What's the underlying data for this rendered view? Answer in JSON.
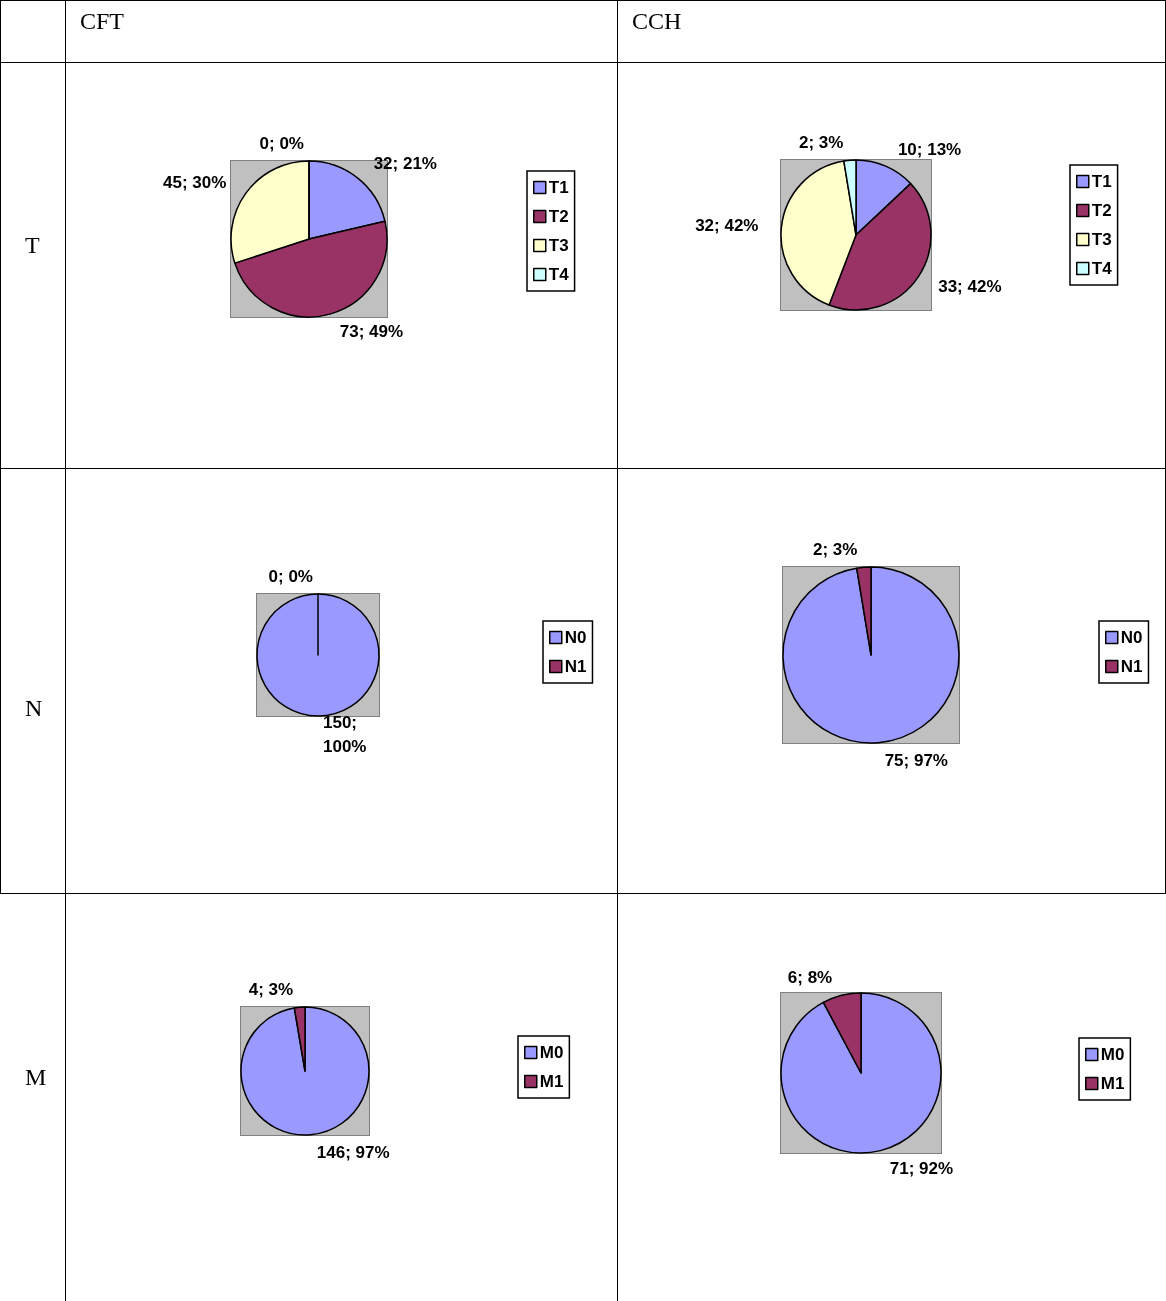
{
  "chart_data": [
    {
      "type": "pie",
      "annotations": [
        "CFT",
        "T"
      ],
      "categories": [
        "T1",
        "T2",
        "T3",
        "T4"
      ],
      "values": [
        32,
        73,
        45,
        0
      ],
      "colors": [
        "#9999ff",
        "#993366",
        "#ffffcc",
        "#ccffff"
      ],
      "value_labels": [
        "32; 21%",
        "73; 49%",
        "45; 30%",
        "0; 0%"
      ],
      "legend": "right"
    },
    {
      "type": "pie",
      "annotations": [
        "CCH"
      ],
      "categories": [
        "T1",
        "T2",
        "T3",
        "T4"
      ],
      "values": [
        10,
        33,
        32,
        2
      ],
      "colors": [
        "#9999ff",
        "#993366",
        "#ffffcc",
        "#ccffff"
      ],
      "value_labels": [
        "10; 13%",
        "33; 42%",
        "32; 42%",
        "2; 3%"
      ],
      "legend": "right"
    },
    {
      "type": "pie",
      "annotations": [
        "N"
      ],
      "categories": [
        "N0",
        "N1"
      ],
      "values": [
        150,
        0
      ],
      "colors": [
        "#9999ff",
        "#993366"
      ],
      "value_labels": [
        "150;\n100%",
        "0; 0%"
      ],
      "legend": "right"
    },
    {
      "type": "pie",
      "categories": [
        "N0",
        "N1"
      ],
      "values": [
        75,
        2
      ],
      "colors": [
        "#9999ff",
        "#993366"
      ],
      "value_labels": [
        "75; 97%",
        "2; 3%"
      ],
      "legend": "right"
    },
    {
      "type": "pie",
      "annotations": [
        "M"
      ],
      "categories": [
        "M0",
        "M1"
      ],
      "values": [
        146,
        4
      ],
      "colors": [
        "#9999ff",
        "#993366"
      ],
      "value_labels": [
        "146; 97%",
        "4; 3%"
      ],
      "legend": "right"
    },
    {
      "type": "pie",
      "categories": [
        "M0",
        "M1"
      ],
      "values": [
        71,
        6
      ],
      "colors": [
        "#9999ff",
        "#993366"
      ],
      "value_labels": [
        "71; 92%",
        "6; 8%"
      ],
      "legend": "right"
    }
  ]
}
